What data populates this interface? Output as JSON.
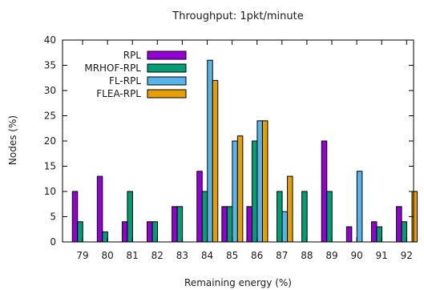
{
  "chart_data": {
    "type": "bar",
    "title": "Throughput: 1pkt/minute",
    "xlabel": "Remaining energy (%)",
    "ylabel": "Nodes (%)",
    "ylim": [
      0,
      40
    ],
    "yticks": [
      0,
      5,
      10,
      15,
      20,
      25,
      30,
      35,
      40
    ],
    "categories": [
      "79",
      "80",
      "81",
      "82",
      "83",
      "84",
      "85",
      "86",
      "87",
      "88",
      "89",
      "90",
      "91",
      "92"
    ],
    "legend_position": "top-left",
    "grid": false,
    "series": [
      {
        "name": "RPL",
        "color": "#9400d3",
        "values": [
          10,
          13,
          4,
          4,
          7,
          14,
          7,
          7,
          0,
          0,
          20,
          3,
          4,
          7
        ]
      },
      {
        "name": "MRHOF-RPL",
        "color": "#009e73",
        "values": [
          4,
          2,
          10,
          4,
          7,
          10,
          7,
          20,
          10,
          10,
          10,
          0,
          3,
          4
        ]
      },
      {
        "name": "FL-RPL",
        "color": "#56b4e9",
        "values": [
          0,
          0,
          0,
          0,
          0,
          36,
          20,
          24,
          6,
          0,
          0,
          14,
          0,
          0
        ]
      },
      {
        "name": "FLEA-RPL",
        "color": "#e69f00",
        "values": [
          0,
          0,
          0,
          0,
          0,
          32,
          21,
          24,
          13,
          0,
          0,
          0,
          0,
          10
        ]
      }
    ]
  }
}
